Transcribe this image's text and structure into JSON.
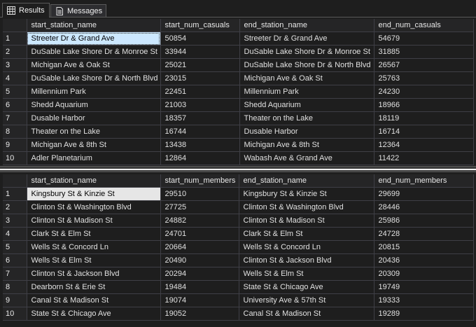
{
  "tabs": [
    {
      "label": "Results",
      "icon": "grid-icon",
      "active": true
    },
    {
      "label": "Messages",
      "icon": "messages-icon",
      "active": false
    }
  ],
  "grid1": {
    "columns": [
      "start_station_name",
      "start_num_casuals",
      "end_station_name",
      "end_num_casuals"
    ],
    "rows": [
      [
        "1",
        "Streeter Dr & Grand Ave",
        "50854",
        "Streeter Dr & Grand Ave",
        "54679"
      ],
      [
        "2",
        "DuSable Lake Shore Dr & Monroe St",
        "33944",
        "DuSable Lake Shore Dr & Monroe St",
        "31885"
      ],
      [
        "3",
        "Michigan Ave & Oak St",
        "25021",
        "DuSable Lake Shore Dr & North Blvd",
        "26567"
      ],
      [
        "4",
        "DuSable Lake Shore Dr & North Blvd",
        "23015",
        "Michigan Ave & Oak St",
        "25763"
      ],
      [
        "5",
        "Millennium Park",
        "22451",
        "Millennium Park",
        "24230"
      ],
      [
        "6",
        "Shedd Aquarium",
        "21003",
        "Shedd Aquarium",
        "18966"
      ],
      [
        "7",
        "Dusable Harbor",
        "18357",
        "Theater on the Lake",
        "18119"
      ],
      [
        "8",
        "Theater on the Lake",
        "16744",
        "Dusable Harbor",
        "16714"
      ],
      [
        "9",
        "Michigan Ave & 8th St",
        "13438",
        "Michigan Ave & 8th St",
        "12364"
      ],
      [
        "10",
        "Adler Planetarium",
        "12864",
        "Wabash Ave & Grand Ave",
        "11422"
      ]
    ]
  },
  "grid2": {
    "columns": [
      "start_station_name",
      "start_num_members",
      "end_station_name",
      "end_num_members"
    ],
    "rows": [
      [
        "1",
        "Kingsbury St & Kinzie St",
        "29510",
        "Kingsbury St & Kinzie St",
        "29699"
      ],
      [
        "2",
        "Clinton St & Washington Blvd",
        "27725",
        "Clinton St & Washington Blvd",
        "28446"
      ],
      [
        "3",
        "Clinton St & Madison St",
        "24882",
        "Clinton St & Madison St",
        "25986"
      ],
      [
        "4",
        "Clark St & Elm St",
        "24701",
        "Clark St & Elm St",
        "24728"
      ],
      [
        "5",
        "Wells St & Concord Ln",
        "20664",
        "Wells St & Concord Ln",
        "20815"
      ],
      [
        "6",
        "Wells St & Elm St",
        "20490",
        "Clinton St & Jackson Blvd",
        "20436"
      ],
      [
        "7",
        "Clinton St & Jackson Blvd",
        "20294",
        "Wells St & Elm St",
        "20309"
      ],
      [
        "8",
        "Dearborn St & Erie St",
        "19484",
        "State St & Chicago Ave",
        "19749"
      ],
      [
        "9",
        "Canal St & Madison St",
        "19074",
        "University Ave & 57th St",
        "19333"
      ],
      [
        "10",
        "State St & Chicago Ave",
        "19052",
        "Canal St & Madison St",
        "19289"
      ]
    ]
  }
}
